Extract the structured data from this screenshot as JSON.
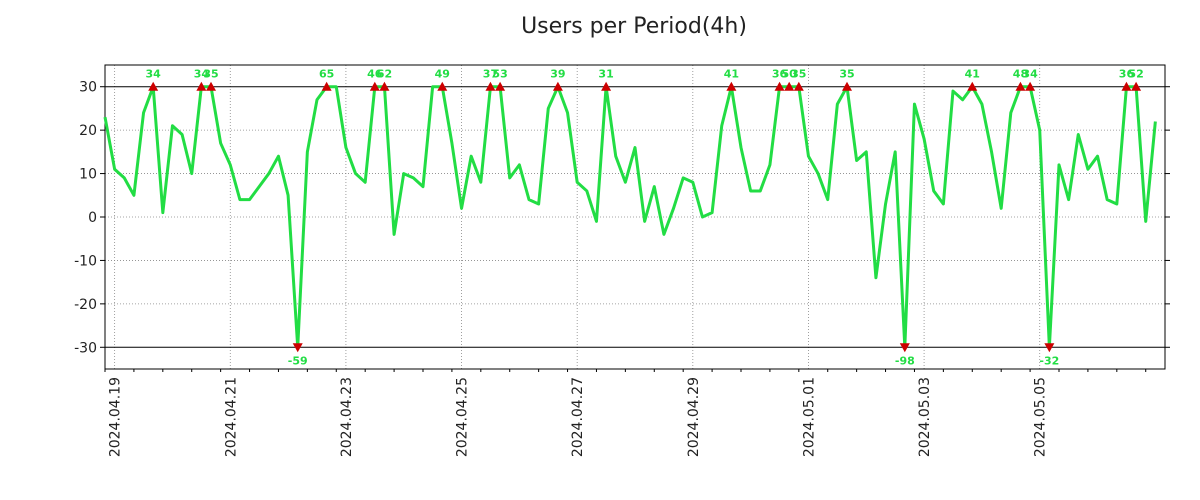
{
  "chart_data": {
    "type": "line",
    "title": "Users per Period(4h)",
    "xlabel": "",
    "ylabel": "",
    "ylim": [
      -35,
      35
    ],
    "clip": [
      -30,
      30
    ],
    "grid": true,
    "yticks": [
      30,
      20,
      10,
      0,
      -10,
      -20,
      -30
    ],
    "ytick_labels": [
      "30",
      "20",
      "10",
      "0",
      "-10",
      "-20",
      "-30"
    ],
    "xlim": [
      0,
      110
    ],
    "xticks": [
      {
        "x": 1,
        "label": "2024.04.19"
      },
      {
        "x": 13,
        "label": "2024.04.21"
      },
      {
        "x": 25,
        "label": "2024.04.23"
      },
      {
        "x": 37,
        "label": "2024.04.25"
      },
      {
        "x": 49,
        "label": "2024.04.27"
      },
      {
        "x": 61,
        "label": "2024.04.29"
      },
      {
        "x": 73,
        "label": "2024.05.01"
      },
      {
        "x": 85,
        "label": "2024.05.03"
      },
      {
        "x": 97,
        "label": "2024.05.05"
      }
    ],
    "series": [
      {
        "name": "Users",
        "color": "#22dd44",
        "values": [
          23,
          11,
          9,
          5,
          24,
          34,
          1,
          21,
          19,
          10,
          34,
          35,
          17,
          12,
          4,
          4,
          7,
          10,
          14,
          5,
          -59,
          15,
          27,
          65,
          30,
          16,
          10,
          8,
          46,
          62,
          -4,
          10,
          9,
          7,
          30,
          49,
          17,
          2,
          14,
          8,
          37,
          53,
          9,
          12,
          4,
          3,
          25,
          39,
          24,
          8,
          6,
          -1,
          31,
          14,
          8,
          16,
          -1,
          7,
          -4,
          2,
          9,
          8,
          0,
          1,
          21,
          41,
          16,
          6,
          6,
          12,
          36,
          50,
          35,
          14,
          10,
          4,
          26,
          35,
          13,
          15,
          -14,
          3,
          15,
          -98,
          26,
          18,
          6,
          3,
          29,
          27,
          41,
          26,
          15,
          2,
          24,
          48,
          34,
          20,
          -32,
          12,
          4,
          19,
          11,
          14,
          4,
          3,
          36,
          52,
          -1,
          22
        ]
      }
    ],
    "peak_labels": [
      {
        "x": 5,
        "label": "34"
      },
      {
        "x": 10,
        "label": "34"
      },
      {
        "x": 11,
        "label": "35"
      },
      {
        "x": 20,
        "label": "-59"
      },
      {
        "x": 23,
        "label": "65"
      },
      {
        "x": 28,
        "label": "46"
      },
      {
        "x": 29,
        "label": "62"
      },
      {
        "x": 35,
        "label": "49"
      },
      {
        "x": 40,
        "label": "37"
      },
      {
        "x": 41,
        "label": "53"
      },
      {
        "x": 47,
        "label": "39"
      },
      {
        "x": 52,
        "label": "31"
      },
      {
        "x": 65,
        "label": "41"
      },
      {
        "x": 70,
        "label": "36"
      },
      {
        "x": 71,
        "label": "50"
      },
      {
        "x": 72,
        "label": "35"
      },
      {
        "x": 77,
        "label": "35"
      },
      {
        "x": 83,
        "label": "-98"
      },
      {
        "x": 90,
        "label": "41"
      },
      {
        "x": 95,
        "label": "48"
      },
      {
        "x": 96,
        "label": "34"
      },
      {
        "x": 98,
        "label": "-32"
      },
      {
        "x": 106,
        "label": "36"
      },
      {
        "x": 107,
        "label": "52"
      }
    ]
  }
}
